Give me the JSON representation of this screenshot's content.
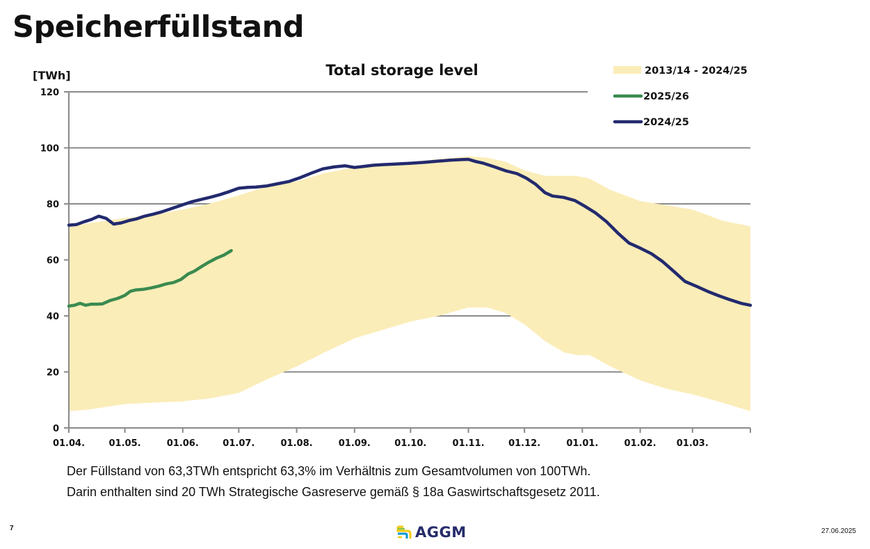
{
  "page": {
    "title": "Speicherfüllstand",
    "notes": [
      "Der Füllstand von 63,3TWh entspricht 63,3% im Verhältnis zum Gesamtvolumen von 100TWh.",
      "Darin enthalten sind 20 TWh Strategische Gasreserve gemäß § 18a Gaswirtschaftsgesetz 2011."
    ],
    "page_number": "7",
    "date": "27.06.2025",
    "logo": {
      "text": "AGGM",
      "icon": "aggm-logo-icon"
    }
  },
  "colors": {
    "band": "#fbedb8",
    "series_2025_26": "#3a8a4f",
    "series_2024_25": "#232a6e",
    "grid": "#8a8a8a"
  },
  "chart_data": {
    "type": "line",
    "title": "Total storage level",
    "ylabel": "[TWh]",
    "xlabel": "",
    "ylim": [
      0,
      120
    ],
    "yticks": [
      0,
      20,
      40,
      60,
      80,
      100,
      120
    ],
    "x_unit": "days since 01.04.",
    "xlim": [
      0,
      365
    ],
    "xticks": [
      {
        "day": 0,
        "label": "01.04."
      },
      {
        "day": 30,
        "label": "01.05."
      },
      {
        "day": 61,
        "label": "01.06."
      },
      {
        "day": 91,
        "label": "01.07."
      },
      {
        "day": 122,
        "label": "01.08."
      },
      {
        "day": 153,
        "label": "01.09."
      },
      {
        "day": 183,
        "label": "01.10."
      },
      {
        "day": 214,
        "label": "01.11."
      },
      {
        "day": 244,
        "label": "01.12."
      },
      {
        "day": 275,
        "label": "01.01."
      },
      {
        "day": 306,
        "label": "01.02."
      },
      {
        "day": 334,
        "label": "01.03."
      }
    ],
    "grid": true,
    "legend_position": "top-right",
    "band": {
      "name": "2013/14 - 2024/25",
      "x": [
        0,
        10,
        20,
        30,
        45,
        61,
        75,
        91,
        105,
        122,
        137,
        153,
        168,
        183,
        198,
        214,
        224,
        234,
        244,
        255,
        265,
        272,
        279,
        290,
        306,
        320,
        334,
        350,
        365
      ],
      "upper": [
        72,
        73,
        74,
        75,
        76,
        78,
        80,
        83,
        86,
        88,
        91,
        93,
        94,
        95,
        96,
        97,
        96.5,
        95,
        92,
        90,
        90,
        90,
        89,
        85,
        81,
        79.5,
        78,
        74,
        72
      ],
      "lower": [
        6,
        6.5,
        7.5,
        8.5,
        9,
        9.5,
        10.5,
        12.5,
        17,
        22,
        27,
        32,
        35,
        38,
        40,
        43,
        43,
        41,
        37,
        31,
        27,
        26,
        26,
        22,
        17,
        14,
        12,
        9,
        6
      ]
    },
    "series": [
      {
        "name": "2025/26",
        "x": [
          0,
          3,
          6,
          9,
          12,
          15,
          18,
          22,
          26,
          30,
          33,
          36,
          40,
          44,
          48,
          52,
          56,
          60,
          64,
          67,
          71,
          75,
          79,
          83,
          87
        ],
        "values": [
          43.5,
          43.8,
          44.5,
          43.8,
          44.2,
          44.2,
          44.3,
          45.5,
          46.2,
          47.3,
          48.8,
          49.3,
          49.5,
          50,
          50.6,
          51.4,
          51.9,
          53,
          55,
          55.9,
          57.6,
          59.2,
          60.6,
          61.7,
          63.3
        ]
      },
      {
        "name": "2024/25",
        "x": [
          0,
          4,
          8,
          12,
          16,
          20,
          24,
          28,
          32,
          36,
          40,
          45,
          50,
          55,
          61,
          66,
          71,
          76,
          81,
          86,
          91,
          96,
          100,
          106,
          112,
          118,
          124,
          130,
          136,
          142,
          148,
          153,
          158,
          163,
          168,
          175,
          183,
          190,
          197,
          204,
          210,
          214,
          218,
          222,
          228,
          234,
          240,
          245,
          250,
          255,
          259,
          265,
          271,
          276,
          282,
          288,
          294,
          300,
          306,
          312,
          318,
          324,
          330,
          336,
          342,
          348,
          354,
          360,
          365
        ],
        "values": [
          72.4,
          72.6,
          73.6,
          74.4,
          75.6,
          74.8,
          72.8,
          73.2,
          74,
          74.6,
          75.5,
          76.3,
          77.2,
          78.3,
          79.7,
          80.8,
          81.6,
          82.4,
          83.3,
          84.4,
          85.6,
          85.9,
          86,
          86.4,
          87.2,
          88,
          89.4,
          91,
          92.5,
          93.2,
          93.6,
          93,
          93.4,
          93.8,
          94,
          94.2,
          94.5,
          94.8,
          95.2,
          95.6,
          95.8,
          95.9,
          95.1,
          94.5,
          93.2,
          91.8,
          90.8,
          89.2,
          87,
          84,
          82.8,
          82.3,
          81.2,
          79.3,
          76.8,
          73.6,
          69.6,
          66,
          64.2,
          62.2,
          59.4,
          55.9,
          52.3,
          50.6,
          48.8,
          47.2,
          45.8,
          44.5,
          43.8
        ]
      }
    ],
    "legend": [
      {
        "label": "2013/14 - 2024/25",
        "kind": "band"
      },
      {
        "label": "2025/26",
        "kind": "line"
      },
      {
        "label": "2024/25",
        "kind": "line"
      }
    ]
  }
}
